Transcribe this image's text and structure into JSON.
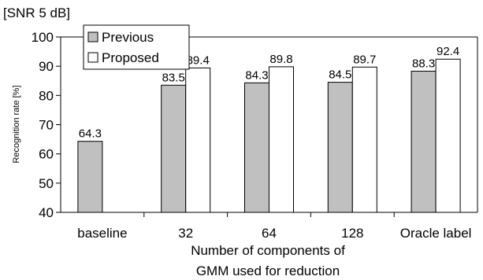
{
  "chart_data": {
    "type": "bar",
    "title": "[SNR 5 dB]",
    "ylabel": "Recognition rate [%]",
    "xlabel_lines": [
      "Number of components of",
      "GMM used for reduction"
    ],
    "ylim": [
      40,
      100
    ],
    "yticks": [
      40,
      50,
      60,
      70,
      80,
      90,
      100
    ],
    "categories": [
      "baseline",
      "32",
      "64",
      "128",
      "Oracle label"
    ],
    "series": [
      {
        "name": "Previous",
        "color": "#c0c0c0",
        "values": [
          64.3,
          83.5,
          84.3,
          84.5,
          88.3
        ],
        "labels": [
          "64.3",
          "83.5",
          "84.3",
          "84.5",
          "88.3"
        ]
      },
      {
        "name": "Proposed",
        "color": "#ffffff",
        "values": [
          null,
          89.4,
          89.8,
          89.7,
          92.4
        ],
        "labels": [
          "",
          "89.4",
          "89.8",
          "89.7",
          "92.4"
        ]
      }
    ],
    "legend_position": "top-left",
    "grid": false
  }
}
